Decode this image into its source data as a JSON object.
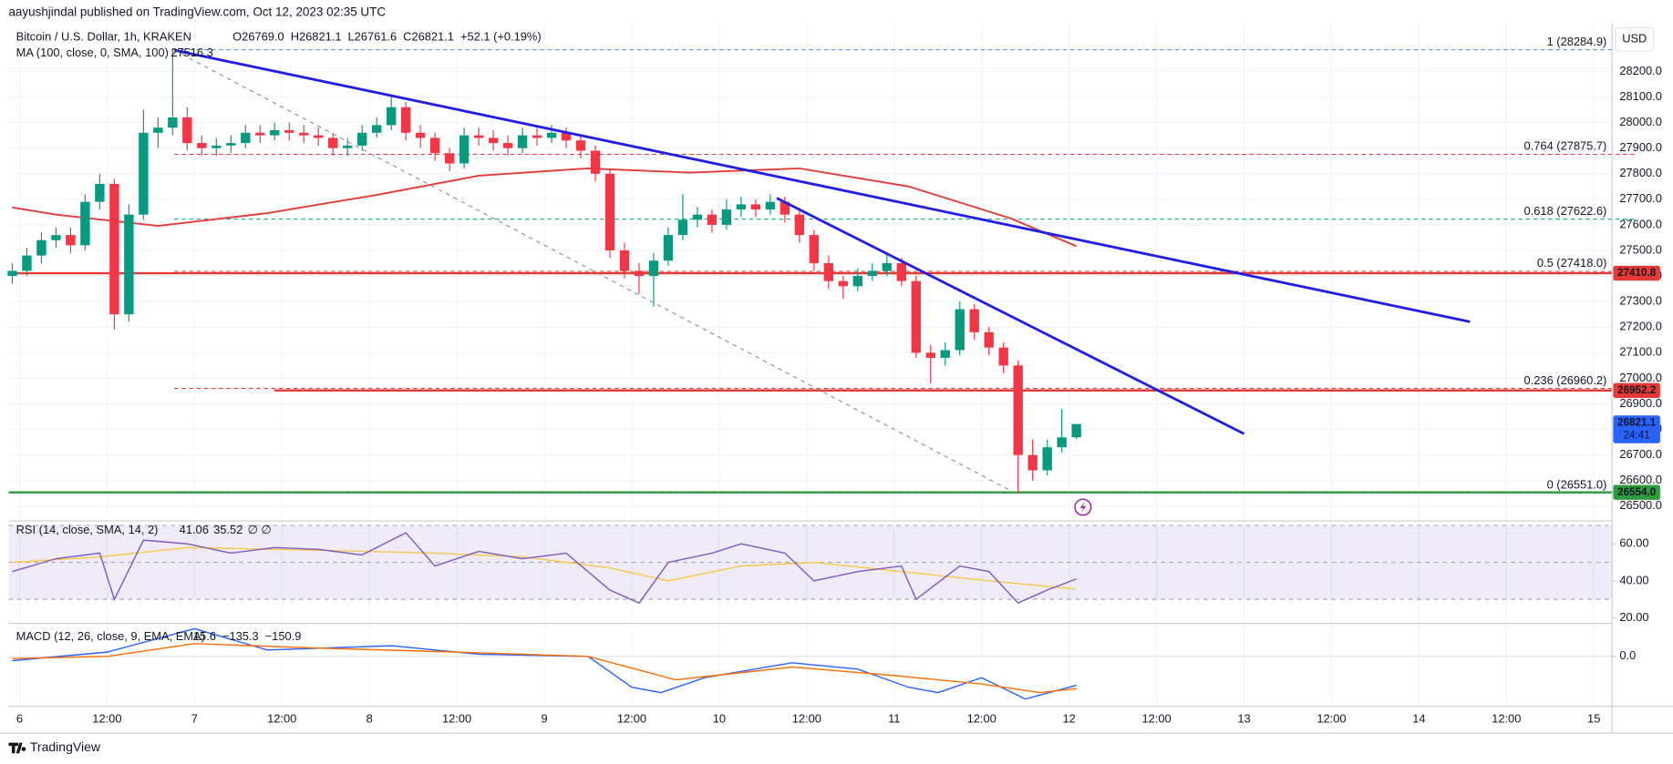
{
  "chart_data": {
    "type": "candlestick",
    "publisher": "aayushjindal published on TradingView.com, Oct 12, 2023 02:35 UTC",
    "title": "Bitcoin / U.S. Dollar, 1h, KRAKEN",
    "legend": [
      "O26769.0",
      "H26821.1",
      "L26761.6",
      "C26821.1",
      "+52.1 (+0.19%)"
    ],
    "currency": "USD",
    "brand": "TradingView",
    "up_color": "#089981",
    "down_color": "#f23645",
    "x": [
      -1,
      1,
      3,
      5,
      7,
      9,
      11,
      13,
      15,
      17,
      19,
      21,
      23,
      25,
      27,
      29,
      31,
      33,
      35,
      37,
      39,
      41,
      43,
      45,
      47,
      49,
      51,
      53,
      55,
      57,
      59,
      61,
      63,
      65,
      67,
      69,
      71,
      73,
      75,
      77,
      79,
      81,
      83,
      85,
      87,
      89,
      91,
      93,
      95,
      97,
      99,
      101,
      103,
      105,
      107,
      109,
      111,
      113,
      115,
      117,
      119,
      121,
      123,
      125,
      127,
      129,
      131,
      133,
      135,
      137,
      139,
      141,
      143,
      145
    ],
    "ohlc": [
      [
        27400,
        27450,
        27370,
        27420
      ],
      [
        27420,
        27510,
        27400,
        27480
      ],
      [
        27480,
        27570,
        27450,
        27540
      ],
      [
        27540,
        27590,
        27510,
        27560
      ],
      [
        27560,
        27590,
        27490,
        27520
      ],
      [
        27520,
        27720,
        27500,
        27690
      ],
      [
        27690,
        27800,
        27660,
        27760
      ],
      [
        27760,
        27780,
        27190,
        27250
      ],
      [
        27250,
        27680,
        27220,
        27640
      ],
      [
        27640,
        28050,
        27620,
        27960
      ],
      [
        27960,
        28020,
        27900,
        27980
      ],
      [
        27980,
        28284.9,
        27950,
        28020
      ],
      [
        28020,
        28060,
        27890,
        27920
      ],
      [
        27920,
        27950,
        27870,
        27900
      ],
      [
        27900,
        27940,
        27870,
        27910
      ],
      [
        27910,
        27950,
        27880,
        27920
      ],
      [
        27920,
        27990,
        27900,
        27960
      ],
      [
        27960,
        27990,
        27920,
        27950
      ],
      [
        27950,
        28000,
        27930,
        27970
      ],
      [
        27970,
        28000,
        27930,
        27960
      ],
      [
        27960,
        27990,
        27920,
        27950
      ],
      [
        27950,
        27980,
        27910,
        27940
      ],
      [
        27940,
        27960,
        27870,
        27900
      ],
      [
        27900,
        27940,
        27870,
        27910
      ],
      [
        27910,
        27990,
        27890,
        27960
      ],
      [
        27960,
        28020,
        27940,
        27990
      ],
      [
        27990,
        28100,
        27970,
        28060
      ],
      [
        28060,
        28080,
        27930,
        27960
      ],
      [
        27960,
        27990,
        27900,
        27940
      ],
      [
        27940,
        27960,
        27850,
        27880
      ],
      [
        27880,
        27900,
        27810,
        27840
      ],
      [
        27840,
        27980,
        27820,
        27950
      ],
      [
        27950,
        27980,
        27910,
        27940
      ],
      [
        27940,
        27970,
        27890,
        27920
      ],
      [
        27920,
        27950,
        27870,
        27900
      ],
      [
        27900,
        27980,
        27880,
        27950
      ],
      [
        27950,
        27980,
        27910,
        27940
      ],
      [
        27940,
        27990,
        27920,
        27960
      ],
      [
        27960,
        27980,
        27900,
        27930
      ],
      [
        27930,
        27950,
        27860,
        27890
      ],
      [
        27890,
        27910,
        27770,
        27800
      ],
      [
        27800,
        27820,
        27470,
        27500
      ],
      [
        27500,
        27530,
        27390,
        27420
      ],
      [
        27420,
        27450,
        27330,
        27400
      ],
      [
        27400,
        27490,
        27280,
        27460
      ],
      [
        27460,
        27590,
        27440,
        27560
      ],
      [
        27560,
        27720,
        27540,
        27620
      ],
      [
        27620,
        27670,
        27590,
        27640
      ],
      [
        27640,
        27660,
        27570,
        27600
      ],
      [
        27600,
        27700,
        27580,
        27660
      ],
      [
        27660,
        27710,
        27630,
        27680
      ],
      [
        27680,
        27700,
        27630,
        27660
      ],
      [
        27660,
        27720,
        27640,
        27690
      ],
      [
        27690,
        27710,
        27610,
        27640
      ],
      [
        27640,
        27660,
        27530,
        27560
      ],
      [
        27560,
        27580,
        27420,
        27450
      ],
      [
        27450,
        27480,
        27350,
        27380
      ],
      [
        27380,
        27400,
        27310,
        27360
      ],
      [
        27360,
        27430,
        27340,
        27400
      ],
      [
        27400,
        27450,
        27380,
        27420
      ],
      [
        27420,
        27490,
        27400,
        27450
      ],
      [
        27450,
        27470,
        27360,
        27380
      ],
      [
        27380,
        27400,
        27080,
        27100
      ],
      [
        27100,
        27130,
        26980,
        27080
      ],
      [
        27080,
        27140,
        27050,
        27110
      ],
      [
        27110,
        27300,
        27090,
        27270
      ],
      [
        27270,
        27290,
        27150,
        27180
      ],
      [
        27180,
        27200,
        27090,
        27120
      ],
      [
        27120,
        27140,
        27020,
        27050
      ],
      [
        27050,
        27070,
        26551,
        26700
      ],
      [
        26700,
        26760,
        26600,
        26640
      ],
      [
        26640,
        26760,
        26620,
        26730
      ],
      [
        26730,
        26880,
        26710,
        26769
      ],
      [
        26769.0,
        26821.1,
        26761.6,
        26821.1
      ]
    ],
    "xlim": [
      -1.5,
      218.5
    ],
    "ylim": [
      26450,
      28387.5
    ],
    "xticks": [
      {
        "value": 0,
        "label": "6"
      },
      {
        "value": 12,
        "label": "12:00"
      },
      {
        "value": 24,
        "label": "7"
      },
      {
        "value": 36,
        "label": "12:00"
      },
      {
        "value": 48,
        "label": "8"
      },
      {
        "value": 60,
        "label": "12:00"
      },
      {
        "value": 72,
        "label": "9"
      },
      {
        "value": 84,
        "label": "12:00"
      },
      {
        "value": 96,
        "label": "10"
      },
      {
        "value": 108,
        "label": "12:00"
      },
      {
        "value": 120,
        "label": "11"
      },
      {
        "value": 132,
        "label": "12:00"
      },
      {
        "value": 144,
        "label": "12"
      },
      {
        "value": 156,
        "label": "12:00"
      },
      {
        "value": 168,
        "label": "13"
      },
      {
        "value": 180,
        "label": "12:00"
      },
      {
        "value": 192,
        "label": "14"
      },
      {
        "value": 204,
        "label": "12:00"
      },
      {
        "value": 216,
        "label": "15"
      }
    ],
    "yticks": [
      {
        "value": 26500,
        "label": "26500.0"
      },
      {
        "value": 26600,
        "label": "26600.0"
      },
      {
        "value": 26700,
        "label": "26700.0"
      },
      {
        "value": 26800,
        "label": "26800.0"
      },
      {
        "value": 26900,
        "label": "26900.0"
      },
      {
        "value": 27000,
        "label": "27000.0"
      },
      {
        "value": 27100,
        "label": "27100.0"
      },
      {
        "value": 27200,
        "label": "27200.0"
      },
      {
        "value": 27300,
        "label": "27300.0"
      },
      {
        "value": 27400,
        "label": "27400.0"
      },
      {
        "value": 27500,
        "label": "27500.0"
      },
      {
        "value": 27600,
        "label": "27600.0"
      },
      {
        "value": 27700,
        "label": "27700.0"
      },
      {
        "value": 27800,
        "label": "27800.0"
      },
      {
        "value": 27900,
        "label": "27900.0"
      },
      {
        "value": 28000,
        "label": "28000.0"
      },
      {
        "value": 28100,
        "label": "28100.0"
      },
      {
        "value": 28200,
        "label": "28200.0"
      }
    ],
    "grid": true,
    "ma": {
      "name": "MA (100, close, 0, SMA, 100)",
      "color": "#e53935",
      "x": [
        -1,
        5,
        19,
        34,
        49,
        63,
        78,
        92,
        107,
        122,
        136,
        145
      ],
      "values": [
        27668,
        27640,
        27596,
        27646,
        27717,
        27792,
        27821,
        27804,
        27821,
        27750,
        27625,
        27516.3
      ]
    },
    "fib_levels": [
      {
        "label": "1 (28284.9)",
        "value": 28284.9,
        "color": "#5b9cf6"
      },
      {
        "label": "0.764 (27875.7)",
        "value": 27875.7,
        "color": "#e53935"
      },
      {
        "label": "0.618 (27622.6)",
        "value": 27622.6,
        "color": "#22ab94"
      },
      {
        "label": "0.5 (27418.0)",
        "value": 27418.0,
        "color": "#e53935"
      },
      {
        "label": "0.236 (26960.2)",
        "value": 26960.2,
        "color": "#e53935"
      },
      {
        "label": "0 (26551.0)",
        "value": 26551.0,
        "color": "#787b86"
      }
    ],
    "price_lines": [
      {
        "value": 27410.8,
        "label": "27410.8",
        "color": "#e53935"
      },
      {
        "value": 26952.2,
        "label": "26952.2",
        "color": "#e53935"
      },
      {
        "value": 26554.0,
        "label": "26554.0",
        "color": "#2e9b3c"
      }
    ],
    "last_price": {
      "value": 26821.1,
      "label": "26821.1",
      "countdown": "24:41",
      "color": "#2962ff"
    },
    "trendlines": [
      {
        "color": "#1e1ee6",
        "x": [
          21.2,
          199
        ],
        "values": [
          28283,
          27221
        ]
      },
      {
        "color": "#1e1ee6",
        "x": [
          103.9,
          168
        ],
        "values": [
          27704,
          26783
        ]
      },
      {
        "color": "#888888",
        "dashed": true,
        "x": [
          21.2,
          136.4
        ],
        "values": [
          28283,
          26554
        ]
      }
    ],
    "rsi": {
      "name": "RSI (14, close, SMA, 14, 2)",
      "color": "#7e57c2",
      "ma_color": "#f7c948",
      "ylim": [
        17,
        73.5
      ],
      "yticks": [
        {
          "value": 20,
          "label": "20.00"
        },
        {
          "value": 40,
          "label": "40.00"
        },
        {
          "value": 60,
          "label": "60.00"
        }
      ],
      "band": [
        30,
        70
      ],
      "mid": 50,
      "extra": "∅ ∅",
      "x": [
        -1,
        5,
        11,
        13,
        17,
        23,
        29,
        35,
        41,
        47,
        53,
        57,
        63,
        69,
        75,
        81,
        85,
        89,
        95,
        99,
        105,
        109,
        115,
        121,
        123,
        129,
        133,
        137,
        141,
        145
      ],
      "values": [
        45,
        52,
        55,
        30,
        62,
        60,
        55,
        58,
        57,
        54,
        66,
        48,
        56,
        52,
        55,
        35,
        28,
        50,
        55,
        60,
        55,
        40,
        45,
        48,
        30,
        48,
        45,
        28,
        35,
        41.06
      ],
      "ma_x": [
        -1,
        11,
        23,
        35,
        47,
        57,
        69,
        81,
        89,
        99,
        109,
        121,
        133,
        145
      ],
      "ma_values": [
        50,
        53,
        58,
        57,
        56,
        55,
        53,
        47,
        40,
        48,
        50,
        45,
        40,
        35.52
      ]
    },
    "macd": {
      "name": "MACD (12, 26, close, 9, EMA, EMA)",
      "legend_values": [
        "15.6",
        "−135.3",
        "−150.9"
      ],
      "colors": [
        "#22ab94",
        "#2962ff",
        "#ff6d00"
      ],
      "ylim": [
        -220,
        130
      ],
      "yticks": [
        {
          "value": 0,
          "label": "0.0"
        }
      ],
      "x": [
        -1,
        12,
        24,
        34,
        51,
        63,
        78,
        84,
        88,
        94,
        106,
        115,
        122,
        126,
        132,
        138,
        145
      ],
      "values": [
        -20,
        20,
        130,
        30,
        50,
        10,
        0,
        -145,
        -170,
        -100,
        -30,
        -60,
        -145,
        -170,
        -100,
        -200,
        -135.3
      ],
      "signal_x": [
        -1,
        12,
        24,
        40,
        60,
        78,
        90,
        106,
        120,
        132,
        140,
        145
      ],
      "signal_values": [
        -10,
        0,
        60,
        40,
        20,
        0,
        -110,
        -50,
        -90,
        -130,
        -170,
        -150.9
      ]
    }
  }
}
